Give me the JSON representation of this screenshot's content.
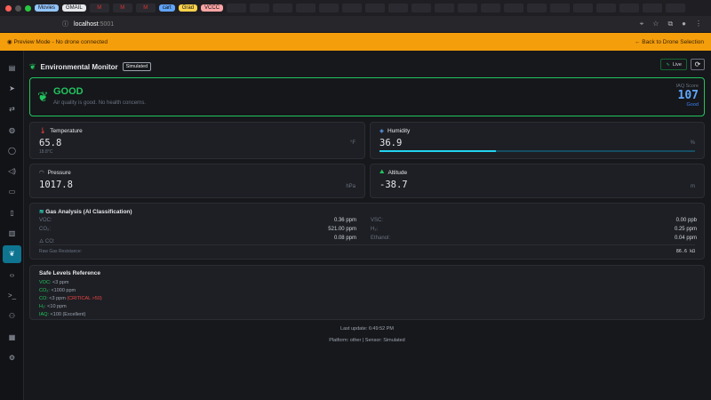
{
  "browser": {
    "bookmarks": [
      "Movies",
      "GMAIL",
      "cart",
      "Grad",
      "VCCC"
    ],
    "url_host": "localhost",
    "url_port": ":5001"
  },
  "banner": {
    "text": "Preview Mode - No drone connected",
    "back": "Back to Drone Selection"
  },
  "header": {
    "title": "Environmental Monitor",
    "badge": "Simulated",
    "live": "Live"
  },
  "status": {
    "level": "GOOD",
    "description": "Air quality is good. No health concerns.",
    "iaq_label": "IAQ Score",
    "iaq_value": "107",
    "iaq_rating": "Good"
  },
  "metrics": {
    "temperature": {
      "label": "Temperature",
      "value": "65.8",
      "sub": "18.8°C",
      "unit": "°F"
    },
    "humidity": {
      "label": "Humidity",
      "value": "36.9",
      "unit": "%",
      "percent": 36.9
    },
    "pressure": {
      "label": "Pressure",
      "value": "1017.8",
      "unit": "hPa"
    },
    "altitude": {
      "label": "Altitude",
      "value": "-38.7",
      "unit": "m"
    }
  },
  "gas": {
    "title": "Gas Analysis (AI Classification)",
    "rows": [
      {
        "label": "VOC:",
        "value": "0.36 ppm"
      },
      {
        "label": "CO₂:",
        "value": "521.00 ppm"
      },
      {
        "label": "CO:",
        "value": "0.08 ppm"
      },
      {
        "label": "VSC:",
        "value": "0.00 ppb"
      },
      {
        "label": "H₂:",
        "value": "0.25 ppm"
      },
      {
        "label": "Ethanol:",
        "value": "0.04 ppm"
      }
    ],
    "raw_label": "Raw Gas Resistance:",
    "raw_value": "86.6 kΩ"
  },
  "safe": {
    "title": "Safe Levels Reference",
    "items": [
      {
        "k": "VOC:",
        "v": " <3 ppm",
        "c": ""
      },
      {
        "k": "CO₂:",
        "v": " <1000 ppm",
        "c": ""
      },
      {
        "k": "CO:",
        "v": " <3 ppm ",
        "c": "(CRITICAL >50)"
      },
      {
        "k": "H₂:",
        "v": " <10 ppm",
        "c": ""
      },
      {
        "k": "IAQ:",
        "v": " <100 (Excellent)",
        "c": ""
      }
    ]
  },
  "footer": {
    "last_update": "Last update: 6:49:52 PM",
    "platform": "Platform: other | Sensor: Simulated"
  }
}
